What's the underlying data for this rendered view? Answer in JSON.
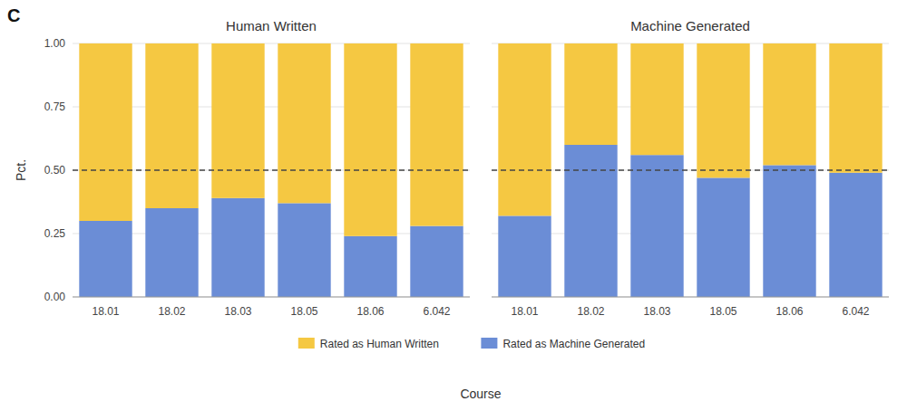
{
  "chart_data": [
    {
      "type": "bar",
      "stacked": true,
      "title": "Human Written",
      "annotations": [
        "C"
      ],
      "x_label": "Course",
      "y_label": "Pct.",
      "categories": [
        "18.01",
        "18.02",
        "18.03",
        "18.05",
        "18.06",
        "6.042"
      ],
      "series": [
        {
          "name": "Rated as Machine Generated",
          "color": "#6B8DD6",
          "values": [
            0.3,
            0.35,
            0.39,
            0.37,
            0.24,
            0.28
          ]
        },
        {
          "name": "Rated as Human Written",
          "color": "#F5C842",
          "values": [
            0.7,
            0.65,
            0.61,
            0.63,
            0.76,
            0.72
          ]
        }
      ],
      "hline": 0.5,
      "ylim": [
        0,
        1.0
      ],
      "yticks": [
        {
          "value": 0.0,
          "label": "0.00"
        },
        0.25,
        {
          "value": 0.5,
          "label": "0.50"
        },
        0.75,
        {
          "value": 1.0,
          "label": "1.00"
        }
      ],
      "grid": true,
      "legend": "bottom"
    },
    {
      "type": "bar",
      "stacked": true,
      "title": "Machine Generated",
      "categories": [
        "18.01",
        "18.02",
        "18.03",
        "18.05",
        "18.06",
        "6.042"
      ],
      "series": [
        {
          "name": "Rated as Machine Generated",
          "color": "#6B8DD6",
          "values": [
            0.32,
            0.6,
            0.56,
            0.47,
            0.52,
            0.49
          ]
        },
        {
          "name": "Rated as Human Written",
          "color": "#F5C842",
          "values": [
            0.68,
            0.4,
            0.44,
            0.53,
            0.48,
            0.51
          ]
        }
      ],
      "hline": 0.5,
      "ylim": [
        0,
        1.0
      ],
      "yticks": [
        {
          "value": 0.0,
          "label": "0.00"
        },
        0.25,
        {
          "value": 0.5,
          "label": "0.50"
        },
        0.75,
        {
          "value": 1.0,
          "label": "1.00"
        }
      ],
      "grid": true,
      "tick_labels": "x"
    }
  ]
}
